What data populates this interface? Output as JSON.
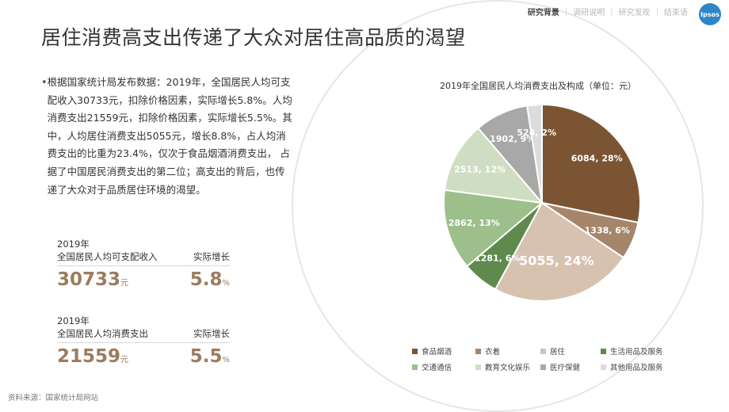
{
  "nav": {
    "items": [
      "研究背景",
      "调研说明",
      "研究发现",
      "结束语"
    ],
    "active": 0
  },
  "logo": {
    "text": "Ipsos"
  },
  "title": "居住消费高支出传递了大众对居住高品质的渴望",
  "bullet": {
    "text": "根据国家统计局发布数据：2019年，全国居民人均可支配收入30733元，扣除价格因素，实际增长5.8%。人均消费支出21559元，扣除价格因素，实际增长5.5%。其中，人均居住消费支出5055元，增长8.8%，占人均消费支出的比重为23.4%，仅次于食品烟酒消费支出， 占据了中国居民消费支出的第二位；高支出的背后，也传递了大众对于品质居住环境的渴望。"
  },
  "stats": [
    {
      "year": "2019年",
      "label": "全国居民人均可支配收入",
      "growth_label": "实际增长",
      "value": "30733",
      "unit": "元",
      "growth": "5.8",
      "growth_unit": "%"
    },
    {
      "year": "2019年",
      "label": "全国居民人均消费支出",
      "growth_label": "实际增长",
      "value": "21559",
      "unit": "元",
      "growth": "5.5",
      "growth_unit": "%"
    }
  ],
  "source": "资料来源：国家统计局网站",
  "chart_data": {
    "type": "pie",
    "title": "2019年全国居民人均消费支出及构成（单位：元）",
    "categories": [
      "食品烟酒",
      "衣着",
      "居住",
      "生活用品及服务",
      "交通通信",
      "教育文化娱乐",
      "医疗保健",
      "其他用品及服务"
    ],
    "values": [
      6084,
      1338,
      5055,
      1281,
      2862,
      2513,
      1902,
      524
    ],
    "labels": [
      "6084, 28%",
      "1338, 6%",
      "5055, 24%",
      "1281, 6%",
      "2862, 13%",
      "2513, 12%",
      "1902, 9%",
      "524, 2%"
    ],
    "colors": [
      "#7b5533",
      "#a5866b",
      "#d7c2b0",
      "#5e8a4e",
      "#9cbf8b",
      "#cfdec3",
      "#a8a8a8",
      "#dcdcdc"
    ],
    "legend_position": "bottom"
  }
}
